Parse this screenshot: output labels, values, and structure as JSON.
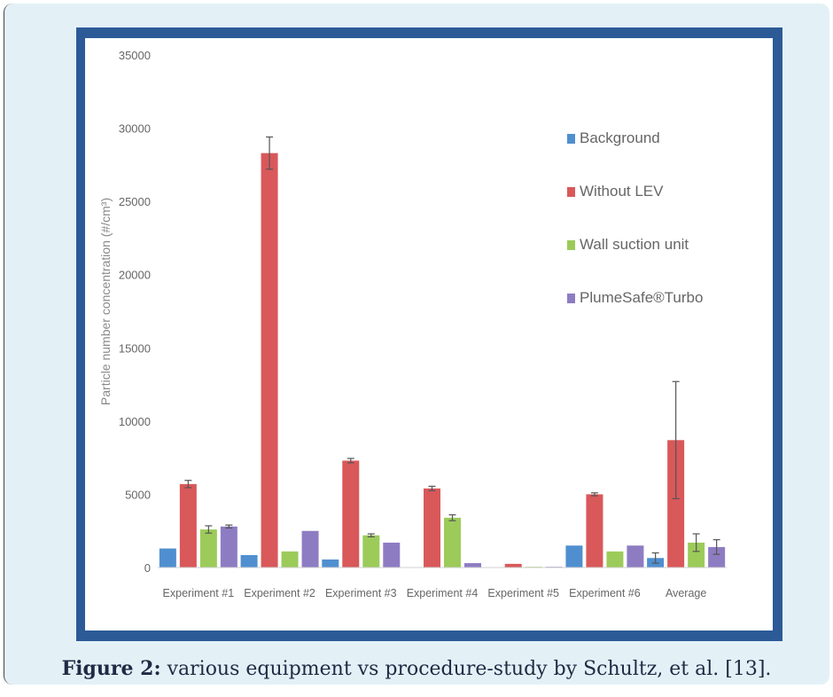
{
  "caption": {
    "label": "Figure 2:",
    "text": "various equipment vs procedure-study by Schultz, et al. [13]."
  },
  "chart_data": {
    "type": "bar",
    "title": "",
    "xlabel": "",
    "ylabel": "Particle number concentration (#/cm³)",
    "ylim": [
      0,
      35000
    ],
    "yticks": [
      0,
      5000,
      10000,
      15000,
      20000,
      25000,
      30000,
      35000
    ],
    "grid": false,
    "legend_position": "right",
    "categories": [
      "Experiment #1",
      "Experiment #2",
      "Experiment #3",
      "Experiment #4",
      "Experiment #5",
      "Experiment #6",
      "Average"
    ],
    "series": [
      {
        "name": "Background",
        "color": "#4f8fd0",
        "values": [
          1300,
          850,
          550,
          0,
          0,
          1500,
          650
        ],
        "errors": [
          0,
          0,
          0,
          0,
          0,
          0,
          350
        ]
      },
      {
        "name": "Without LEV",
        "color": "#d9585a",
        "values": [
          5700,
          28300,
          7300,
          5400,
          250,
          5000,
          8700
        ],
        "errors": [
          250,
          1100,
          150,
          150,
          0,
          100,
          4000
        ]
      },
      {
        "name": "Wall suction unit",
        "color": "#9ccb5a",
        "values": [
          2600,
          1100,
          2200,
          3400,
          50,
          1100,
          1700
        ],
        "errors": [
          250,
          0,
          100,
          200,
          0,
          0,
          600
        ]
      },
      {
        "name": "PlumeSafe®Turbo",
        "color": "#8e7cc3",
        "values": [
          2800,
          2500,
          1700,
          300,
          50,
          1500,
          1400
        ],
        "errors": [
          100,
          0,
          0,
          0,
          0,
          0,
          500
        ]
      }
    ]
  }
}
